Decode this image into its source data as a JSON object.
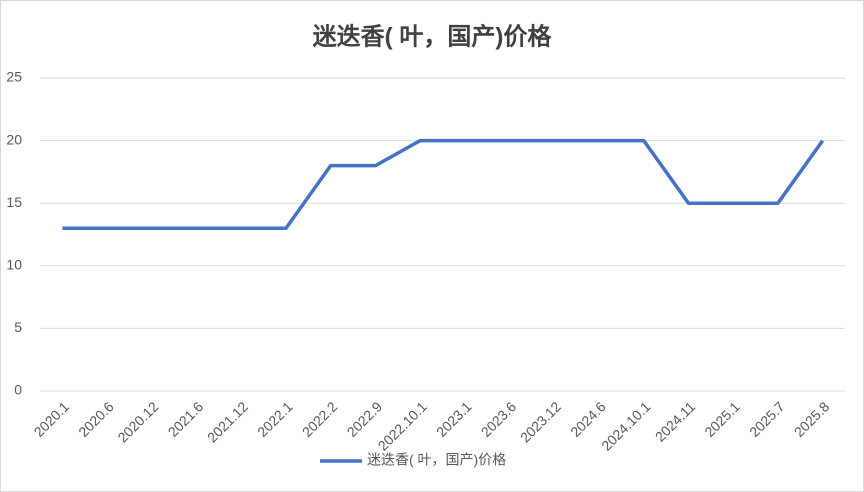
{
  "chart_data": {
    "type": "line",
    "title": "迷迭香( 叶，国产)价格",
    "categories": [
      "2020.1",
      "2020.6",
      "2020.12",
      "2021.6",
      "2021.12",
      "2022.1",
      "2022.2",
      "2022.9",
      "2022.10.1",
      "2023.1",
      "2023.6",
      "2023.12",
      "2024.6",
      "2024.10.1",
      "2024.11",
      "2025.1",
      "2025.7",
      "2025.8"
    ],
    "series": [
      {
        "name": "迷迭香( 叶，国产)价格",
        "color": "#4472c4",
        "values": [
          13,
          13,
          13,
          13,
          13,
          13,
          18,
          18,
          20,
          20,
          20,
          20,
          20,
          20,
          15,
          15,
          15,
          20
        ]
      }
    ],
    "ylim": [
      0,
      25
    ],
    "yticks": [
      0,
      5,
      10,
      15,
      20,
      25
    ],
    "grid": true,
    "legend": "bottom"
  }
}
